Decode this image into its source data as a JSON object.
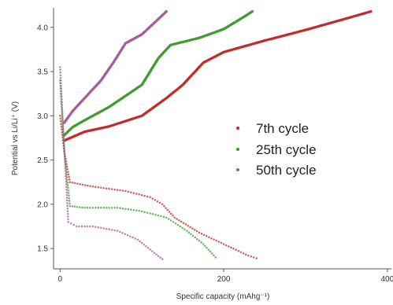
{
  "chart_data": {
    "type": "scatter",
    "xlabel": "Specific capacity (mAhg⁻¹)",
    "ylabel": "Potential vs Li/Li⁺ (V)",
    "xlim": [
      -8,
      405
    ],
    "ylim": [
      1.27,
      4.22
    ],
    "x_ticks": [
      0,
      200,
      400
    ],
    "y_ticks": [
      1.5,
      2.0,
      2.5,
      3.0,
      3.5,
      4.0
    ],
    "x_tick_labels": [
      "0",
      "200",
      "400"
    ],
    "y_tick_labels": [
      "1.5",
      "2.0",
      "2.5",
      "3.0",
      "3.5",
      "4.0"
    ],
    "grid": false,
    "legend_position": "right",
    "series": [
      {
        "name": "7th cycle",
        "color": "#c0282a",
        "charge": [
          [
            5,
            2.72
          ],
          [
            15,
            2.76
          ],
          [
            30,
            2.82
          ],
          [
            60,
            2.88
          ],
          [
            100,
            3.0
          ],
          [
            130,
            3.2
          ],
          [
            150,
            3.35
          ],
          [
            175,
            3.6
          ],
          [
            200,
            3.72
          ],
          [
            250,
            3.85
          ],
          [
            300,
            3.97
          ],
          [
            350,
            4.1
          ],
          [
            380,
            4.18
          ]
        ],
        "discharge": [
          [
            0,
            3.0
          ],
          [
            5,
            2.6
          ],
          [
            12,
            2.25
          ],
          [
            40,
            2.2
          ],
          [
            80,
            2.15
          ],
          [
            110,
            2.08
          ],
          [
            125,
            2.0
          ],
          [
            140,
            1.85
          ],
          [
            170,
            1.68
          ],
          [
            200,
            1.55
          ],
          [
            230,
            1.42
          ],
          [
            240,
            1.39
          ]
        ]
      },
      {
        "name": "25th cycle",
        "color": "#3c9a2c",
        "charge": [
          [
            5,
            2.78
          ],
          [
            15,
            2.87
          ],
          [
            30,
            2.95
          ],
          [
            60,
            3.1
          ],
          [
            100,
            3.35
          ],
          [
            120,
            3.65
          ],
          [
            135,
            3.8
          ],
          [
            170,
            3.88
          ],
          [
            200,
            3.98
          ],
          [
            225,
            4.12
          ],
          [
            235,
            4.18
          ]
        ],
        "discharge": [
          [
            0,
            3.4
          ],
          [
            5,
            2.6
          ],
          [
            12,
            1.98
          ],
          [
            30,
            1.96
          ],
          [
            70,
            1.96
          ],
          [
            100,
            1.92
          ],
          [
            130,
            1.85
          ],
          [
            155,
            1.7
          ],
          [
            175,
            1.55
          ],
          [
            190,
            1.4
          ]
        ]
      },
      {
        "name": "50th cycle",
        "color": "#a45a98",
        "charge": [
          [
            5,
            2.92
          ],
          [
            15,
            3.05
          ],
          [
            30,
            3.2
          ],
          [
            50,
            3.4
          ],
          [
            65,
            3.6
          ],
          [
            80,
            3.82
          ],
          [
            100,
            3.92
          ],
          [
            115,
            4.05
          ],
          [
            130,
            4.18
          ]
        ],
        "discharge": [
          [
            0,
            3.55
          ],
          [
            3,
            3.0
          ],
          [
            6,
            2.5
          ],
          [
            10,
            1.8
          ],
          [
            20,
            1.75
          ],
          [
            40,
            1.75
          ],
          [
            70,
            1.7
          ],
          [
            95,
            1.6
          ],
          [
            115,
            1.45
          ],
          [
            125,
            1.38
          ]
        ]
      }
    ]
  }
}
